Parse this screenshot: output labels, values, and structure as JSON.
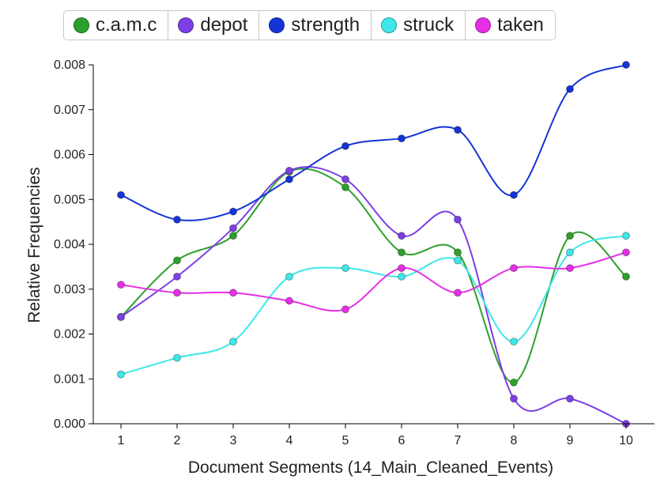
{
  "chart_data": {
    "type": "line",
    "title": "",
    "xlabel": "Document Segments (14_Main_Cleaned_Events)",
    "ylabel": "Relative Frequencies",
    "x": [
      1,
      2,
      3,
      4,
      5,
      6,
      7,
      8,
      9,
      10
    ],
    "xlim": [
      0.5,
      10.5
    ],
    "ylim": [
      0,
      0.008
    ],
    "yticks": [
      "0.000",
      "0.001",
      "0.002",
      "0.003",
      "0.004",
      "0.005",
      "0.006",
      "0.007",
      "0.008"
    ],
    "xticks": [
      "1",
      "2",
      "3",
      "4",
      "5",
      "6",
      "7",
      "8",
      "9",
      "10"
    ],
    "grid": false,
    "legend_position": "top",
    "series": [
      {
        "name": "c.a.m.c",
        "color": "#2ca02c",
        "values": [
          0.00238,
          0.00364,
          0.00419,
          0.00562,
          0.00527,
          0.00382,
          0.00382,
          0.00092,
          0.00419,
          0.00328
        ]
      },
      {
        "name": "depot",
        "color": "#7b3fe4",
        "values": [
          0.00238,
          0.00328,
          0.00436,
          0.00564,
          0.00545,
          0.00419,
          0.00455,
          0.00056,
          0.00056,
          0.0
        ]
      },
      {
        "name": "strength",
        "color": "#1534d6",
        "values": [
          0.0051,
          0.00455,
          0.00473,
          0.00545,
          0.00619,
          0.00636,
          0.00655,
          0.0051,
          0.00746,
          0.008
        ]
      },
      {
        "name": "struck",
        "color": "#3ee8e8",
        "values": [
          0.0011,
          0.00147,
          0.00183,
          0.00328,
          0.00347,
          0.00328,
          0.00364,
          0.00183,
          0.00382,
          0.00419
        ]
      },
      {
        "name": "taken",
        "color": "#e62ee6",
        "values": [
          0.0031,
          0.00292,
          0.00292,
          0.00274,
          0.00255,
          0.00347,
          0.00292,
          0.00347,
          0.00347,
          0.00382
        ]
      }
    ]
  }
}
